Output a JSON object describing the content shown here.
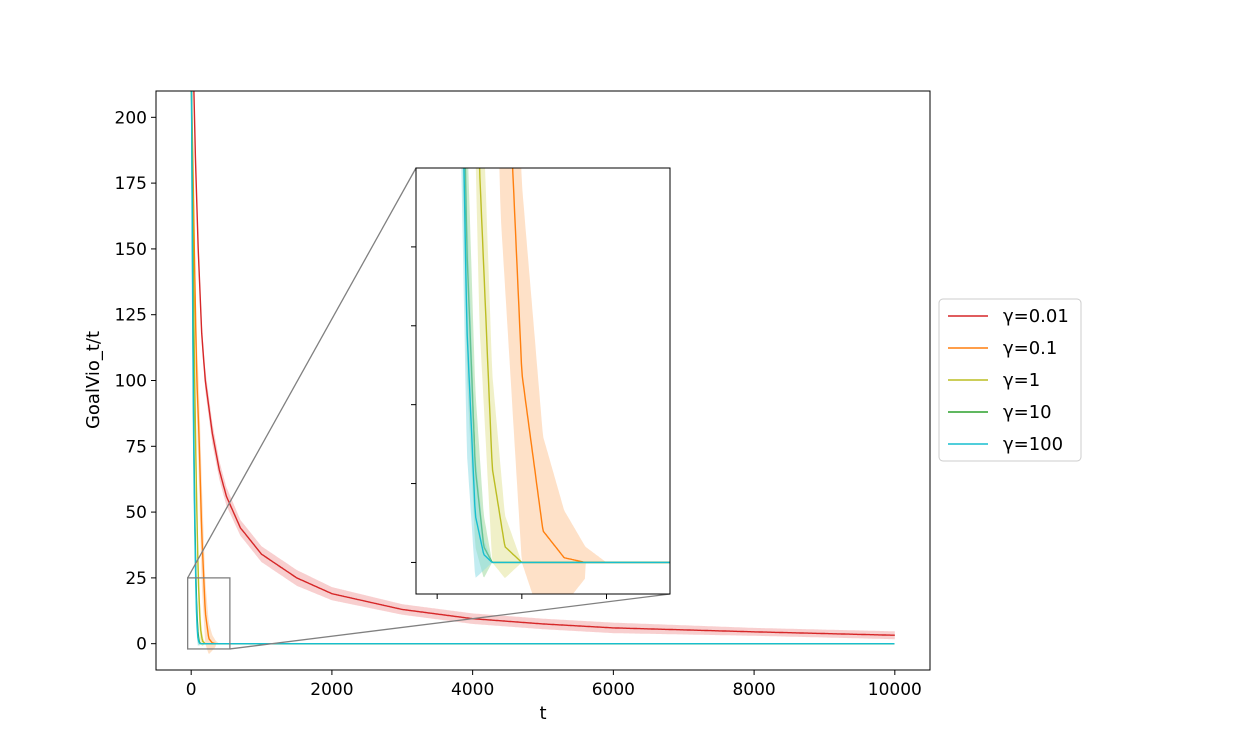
{
  "chart_data": {
    "type": "line",
    "title": "",
    "xlabel": "t",
    "ylabel": "GoalVio_t/t",
    "xlim": [
      -500,
      10500
    ],
    "ylim": [
      -10,
      210
    ],
    "xticks": [
      0,
      2000,
      4000,
      6000,
      8000,
      10000
    ],
    "yticks": [
      0,
      25,
      50,
      75,
      100,
      125,
      150,
      175,
      200
    ],
    "grid": false,
    "legend_position": "outside-right",
    "series": [
      {
        "name": "γ=0.01",
        "color": "#d62728",
        "band_color": "#f3a8a8",
        "t": [
          30,
          60,
          100,
          150,
          200,
          300,
          400,
          500,
          700,
          1000,
          1500,
          2000,
          3000,
          4000,
          5000,
          6000,
          8000,
          10000
        ],
        "mean": [
          220,
          185,
          150,
          118,
          100,
          80,
          66,
          56,
          44,
          34,
          25,
          19,
          13,
          9.5,
          7.5,
          6,
          4.5,
          3.2
        ],
        "band": [
          2,
          3,
          4,
          4,
          4,
          4,
          3.5,
          3.5,
          3,
          3,
          3,
          2.5,
          2,
          2,
          2,
          2,
          1.5,
          1.5
        ]
      },
      {
        "name": "γ=0.1",
        "color": "#ff7f0e",
        "band_color": "#fdc89a",
        "t": [
          5,
          30,
          60,
          80,
          110,
          150,
          200,
          250,
          300,
          350,
          400
        ],
        "mean": [
          210,
          175,
          125,
          100,
          80,
          42,
          12,
          2,
          0.3,
          0,
          0
        ],
        "band": [
          5,
          10,
          15,
          15,
          18,
          20,
          12,
          6,
          3,
          1,
          0
        ]
      },
      {
        "name": "γ=1",
        "color": "#bcbd22",
        "band_color": "#e4e39a",
        "t": [
          5,
          20,
          40,
          60,
          80,
          100,
          130,
          160,
          200
        ],
        "mean": [
          210,
          180,
          120,
          80,
          50,
          25,
          6,
          1,
          0
        ],
        "band": [
          5,
          12,
          15,
          15,
          12,
          10,
          6,
          2,
          0
        ]
      },
      {
        "name": "γ=10",
        "color": "#2ca02c",
        "band_color": "#9fd89f",
        "t": [
          5,
          15,
          30,
          50,
          70,
          90,
          110,
          130,
          150
        ],
        "mean": [
          210,
          170,
          100,
          50,
          20,
          6,
          1,
          0,
          0
        ],
        "band": [
          5,
          10,
          12,
          10,
          8,
          5,
          2,
          0,
          0
        ]
      },
      {
        "name": "γ=100",
        "color": "#17becf",
        "band_color": "#8fdde6",
        "t": [
          5,
          15,
          30,
          50,
          70,
          90,
          110,
          130,
          150
        ],
        "mean": [
          210,
          160,
          90,
          45,
          15,
          3,
          0.5,
          0,
          0
        ],
        "band": [
          5,
          10,
          12,
          10,
          8,
          4,
          1,
          0,
          0
        ]
      }
    ],
    "inset": {
      "xlim": [
        -50,
        550
      ],
      "ylim": [
        -2,
        25
      ],
      "xticks": [
        0,
        200,
        400
      ],
      "yticks": [
        0,
        5,
        10,
        15,
        20
      ],
      "tick_labels_shown": false
    },
    "zoom_box": {
      "x": [
        -50,
        550
      ],
      "y": [
        -2,
        25
      ]
    }
  }
}
